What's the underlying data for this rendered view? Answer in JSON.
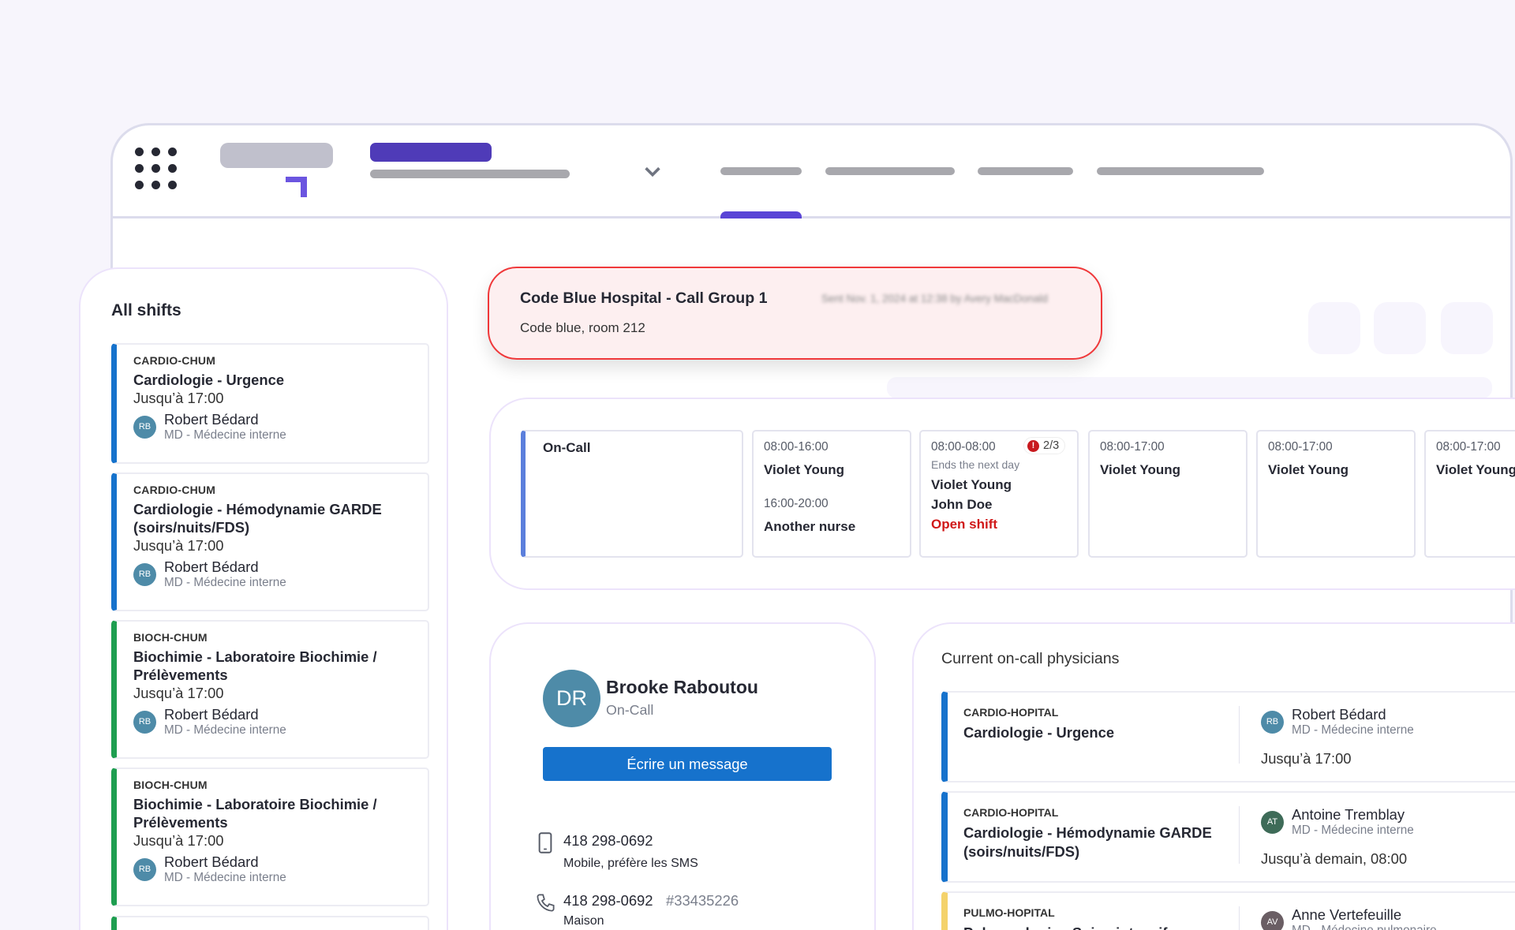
{
  "colors": {
    "accent": "#4f3bb8",
    "primary_button": "#1672cc",
    "alert_border": "#f0383a",
    "alert_bg": "#fdeff0",
    "open_shift": "#d01818",
    "cardio": "#1672cc",
    "bioch": "#1e9e50",
    "pulmo": "#f4d26b"
  },
  "alert": {
    "title": "Code Blue Hospital - Call Group 1",
    "meta": "Sent Nov. 1, 2024 at 12:38 by Avery MacDonald",
    "body": "Code blue, room 212"
  },
  "all_shifts": {
    "title": "All shifts",
    "items": [
      {
        "code": "CARDIO-CHUM",
        "title": "Cardiologie - Urgence",
        "until": "Jusqu’à 17:00",
        "initials": "RB",
        "name": "Robert Bédard",
        "role": "MD - Médecine interne"
      },
      {
        "code": "CARDIO-CHUM",
        "title": "Cardiologie - Hémodynamie GARDE (soirs/nuits/FDS)",
        "until": "Jusqu’à 17:00",
        "initials": "RB",
        "name": "Robert Bédard",
        "role": "MD - Médecine interne"
      },
      {
        "code": "BIOCH-CHUM",
        "title": "Biochimie - Laboratoire Biochimie / Prélèvements",
        "until": "Jusqu’à 17:00",
        "initials": "RB",
        "name": "Robert Bédard",
        "role": "MD - Médecine interne"
      },
      {
        "code": "BIOCH-CHUM",
        "title": "Biochimie - Laboratoire Biochimie / Prélèvements",
        "until": "Jusqu’à 17:00",
        "initials": "RB",
        "name": "Robert Bédard",
        "role": "MD - Médecine interne"
      }
    ]
  },
  "schedule": {
    "row_label": "On-Call",
    "cells": [
      {
        "time": "08:00-16:00",
        "name": "Violet Young",
        "time2": "16:00-20:00",
        "name2": "Another nurse"
      },
      {
        "time": "08:00-08:00",
        "badge": "2/3",
        "note": "Ends the next day",
        "names": [
          "Violet Young",
          "John Doe"
        ],
        "open": "Open shift"
      },
      {
        "time": "08:00-17:00",
        "name": "Violet Young"
      },
      {
        "time": "08:00-17:00",
        "name": "Violet Young"
      },
      {
        "time": "08:00-17:00",
        "name": "Violet Young"
      }
    ]
  },
  "contact": {
    "initials": "DR",
    "name": "Brooke Raboutou",
    "status": "On-Call",
    "button": "Écrire un message",
    "mobile": "418 298-0692",
    "mobile_note": "Mobile, préfère les SMS",
    "home": "418 298-0692",
    "ext": "#33435226",
    "home_note": "Maison"
  },
  "physicians": {
    "title": "Current on-call physicians",
    "items": [
      {
        "code": "CARDIO-HOPITAL",
        "title": "Cardiologie - Urgence",
        "initials": "RB",
        "name": "Robert Bédard",
        "role": "MD - Médecine interne",
        "until": "Jusqu’à 17:00"
      },
      {
        "code": "CARDIO-HOPITAL",
        "title": "Cardiologie - Hémodynamie GARDE (soirs/nuits/FDS)",
        "initials": "AT",
        "name": "Antoine Tremblay",
        "role": "MD - Médecine interne",
        "until": "Jusqu’à demain, 08:00"
      },
      {
        "code": "PULMO-HOPITAL",
        "title": "Pulmonologie - Soins intensifs",
        "initials": "AV",
        "name": "Anne Vertefeuille",
        "role": "MD - Médecine pulmonaire"
      }
    ]
  }
}
